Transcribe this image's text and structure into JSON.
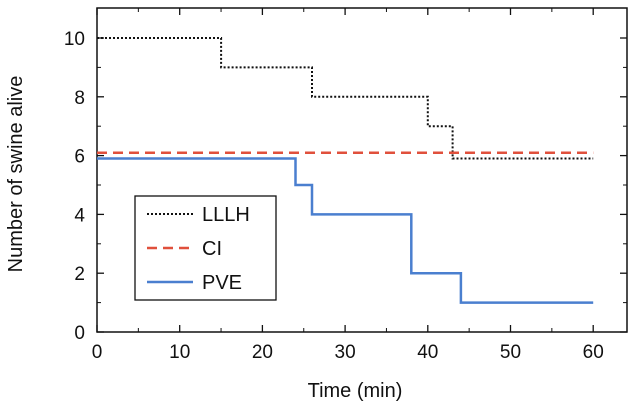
{
  "chart_data": {
    "type": "line",
    "title": "",
    "xlabel": "Time (min)",
    "ylabel": "Number of swine alive",
    "xlim": [
      0,
      62
    ],
    "ylim": [
      0,
      11
    ],
    "x_ticks": [
      "0",
      "10",
      "20",
      "30",
      "40",
      "50",
      "60"
    ],
    "y_ticks": [
      "0",
      "2",
      "4",
      "6",
      "8",
      "10"
    ],
    "grid": false,
    "legend_position": "bottom-left",
    "step": true,
    "series": [
      {
        "name": "LLLH",
        "color": "#111111",
        "style": "dotted",
        "x": [
          0,
          15,
          26,
          40,
          43,
          60
        ],
        "y": [
          10,
          9,
          8,
          7,
          5.9,
          5.9
        ]
      },
      {
        "name": "CI",
        "color": "#e0503c",
        "style": "dashed",
        "x": [
          0,
          60
        ],
        "y": [
          6.1,
          6.1
        ]
      },
      {
        "name": "PVE",
        "color": "#4a7fcf",
        "style": "solid",
        "x": [
          0,
          24,
          26,
          38,
          44,
          60
        ],
        "y": [
          5.9,
          5,
          4,
          2,
          1,
          1
        ]
      }
    ]
  }
}
